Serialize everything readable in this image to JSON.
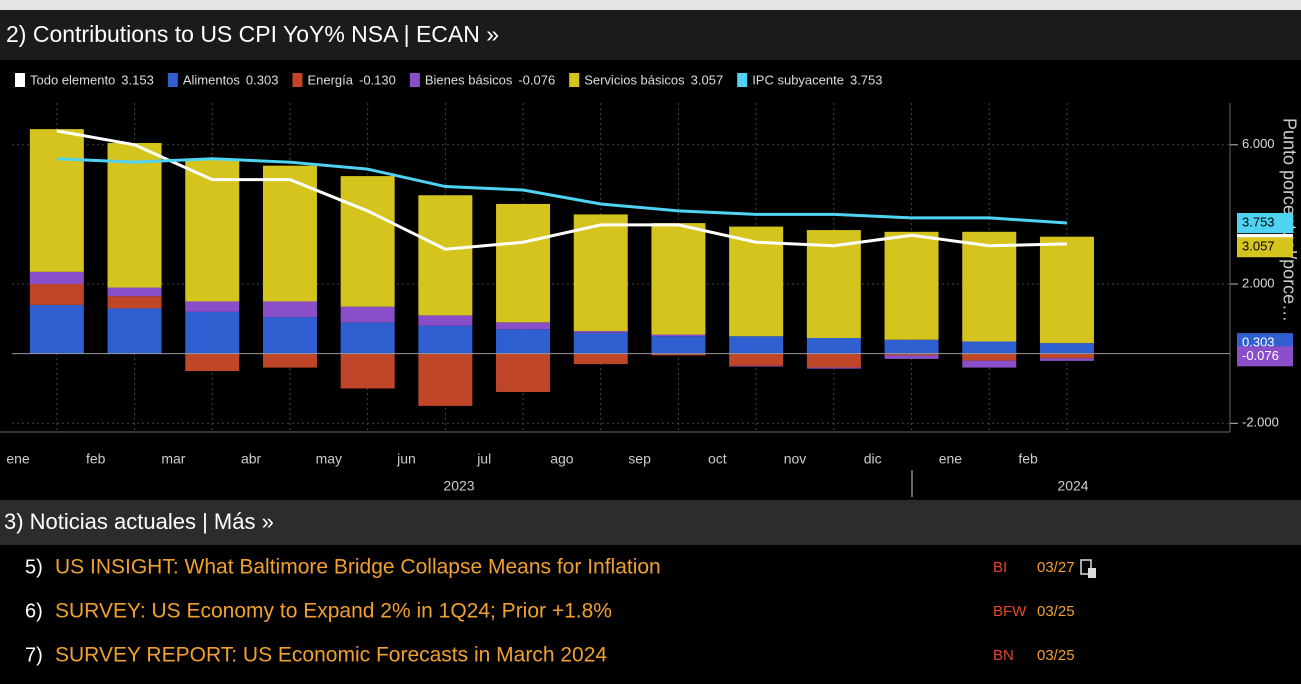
{
  "header": {
    "title": "2) Contributions to US CPI YoY% NSA | ECAN »"
  },
  "chart_data": {
    "type": "bar",
    "categories": [
      "ene",
      "feb",
      "mar",
      "abr",
      "may",
      "jun",
      "jul",
      "ago",
      "sep",
      "oct",
      "nov",
      "dic",
      "ene",
      "feb"
    ],
    "year_labels": [
      "2023",
      "2024"
    ],
    "y_label": "Punto porcentual/porce…",
    "ylim": [
      -2.25,
      7.2
    ],
    "yticks": [
      {
        "value": 6,
        "label": "6.000"
      },
      {
        "value": 2,
        "label": "2.000"
      },
      {
        "value": -2,
        "label": "-2.000"
      }
    ],
    "grid": true,
    "series": [
      {
        "name": "Todo elemento",
        "last_label": "3.153",
        "type": "line",
        "color": "#ffffff",
        "values": [
          6.4,
          6.0,
          5.0,
          5.0,
          4.1,
          3.0,
          3.2,
          3.7,
          3.7,
          3.2,
          3.1,
          3.4,
          3.1,
          3.153
        ]
      },
      {
        "name": "Alimentos",
        "last_label": "0.303",
        "type": "bar",
        "color": "#2f5fd0",
        "values": [
          1.4,
          1.3,
          1.2,
          1.05,
          0.9,
          0.8,
          0.7,
          0.6,
          0.5,
          0.5,
          0.45,
          0.4,
          0.35,
          0.303
        ]
      },
      {
        "name": "Energía",
        "last_label": "-0.130",
        "type": "bar",
        "color": "#c0462a",
        "values": [
          0.6,
          0.35,
          -0.5,
          -0.4,
          -1.0,
          -1.5,
          -1.1,
          -0.3,
          -0.05,
          -0.35,
          -0.4,
          -0.05,
          -0.2,
          -0.13
        ]
      },
      {
        "name": "Bienes básicos",
        "last_label": "-0.076",
        "type": "bar",
        "color": "#8a4fc8",
        "values": [
          0.35,
          0.25,
          0.3,
          0.45,
          0.45,
          0.3,
          0.2,
          0.05,
          0.05,
          -0.02,
          -0.03,
          -0.1,
          -0.2,
          -0.076
        ]
      },
      {
        "name": "Servicios básicos",
        "last_label": "3.057",
        "type": "bar",
        "color": "#d6c41e",
        "values": [
          4.1,
          4.15,
          4.1,
          3.9,
          3.75,
          3.45,
          3.4,
          3.35,
          3.2,
          3.15,
          3.1,
          3.1,
          3.15,
          3.057
        ]
      },
      {
        "name": "IPC subyacente",
        "last_label": "3.753",
        "type": "line",
        "color": "#4fd3f2",
        "values": [
          5.6,
          5.5,
          5.6,
          5.5,
          5.3,
          4.8,
          4.7,
          4.3,
          4.1,
          4.0,
          4.0,
          3.9,
          3.9,
          3.753
        ]
      }
    ]
  },
  "news": {
    "title": "3) Noticias actuales | Más »",
    "items": [
      {
        "number": "5)",
        "headline": "US INSIGHT: What Baltimore Bridge Collapse Means for Inflation",
        "source": "BI",
        "date": "03/27"
      },
      {
        "number": "6)",
        "headline": "SURVEY: US Economy to Expand 2% in 1Q24; Prior +1.8%",
        "source": "BFW",
        "date": "03/25"
      },
      {
        "number": "7)",
        "headline": "SURVEY REPORT: US Economic Forecasts in March 2024",
        "source": "BN",
        "date": "03/25"
      }
    ]
  }
}
